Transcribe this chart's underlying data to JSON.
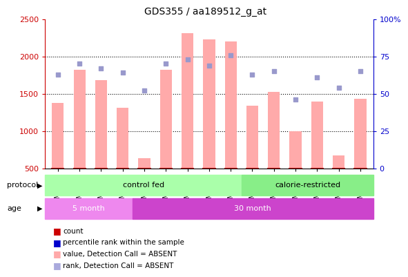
{
  "title": "GDS355 / aa189512_g_at",
  "samples": [
    "GSM7467",
    "GSM7468",
    "GSM7469",
    "GSM7470",
    "GSM7471",
    "GSM7457",
    "GSM7459",
    "GSM7461",
    "GSM7463",
    "GSM7465",
    "GSM7447",
    "GSM7449",
    "GSM7451",
    "GSM7453",
    "GSM7455"
  ],
  "bar_values": [
    1380,
    1820,
    1680,
    1310,
    630,
    1820,
    2310,
    2230,
    2200,
    1340,
    1520,
    1000,
    1390,
    670,
    1430
  ],
  "dot_values": [
    63,
    70,
    67,
    64,
    52,
    70,
    73,
    69,
    76,
    63,
    65,
    46,
    61,
    54,
    65
  ],
  "bar_color": "#ffaaaa",
  "dot_color": "#9999cc",
  "bar_bottom": 500,
  "ylim_left": [
    500,
    2500
  ],
  "ylim_right": [
    0,
    100
  ],
  "yticks_left": [
    500,
    1000,
    1500,
    2000,
    2500
  ],
  "yticks_right": [
    0,
    25,
    50,
    75,
    100
  ],
  "ylabel_left_color": "#cc0000",
  "ylabel_right_color": "#0000cc",
  "protocol_groups": [
    {
      "label": "control fed",
      "start": 0,
      "end": 9,
      "color": "#aaffaa"
    },
    {
      "label": "calorie-restricted",
      "start": 9,
      "end": 15,
      "color": "#88ee88"
    }
  ],
  "age_groups": [
    {
      "label": "5 month",
      "start": 0,
      "end": 4,
      "color": "#ee88ee"
    },
    {
      "label": "30 month",
      "start": 4,
      "end": 15,
      "color": "#cc44cc"
    }
  ],
  "protocol_label": "protocol",
  "age_label": "age",
  "legend_colors": [
    "#cc0000",
    "#0000cc",
    "#ffaaaa",
    "#aaaadd"
  ],
  "legend_labels": [
    "count",
    "percentile rank within the sample",
    "value, Detection Call = ABSENT",
    "rank, Detection Call = ABSENT"
  ],
  "background_color": "#ffffff",
  "plot_bg_color": "#ffffff",
  "tick_label_fontsize": 7.5,
  "title_fontsize": 10
}
